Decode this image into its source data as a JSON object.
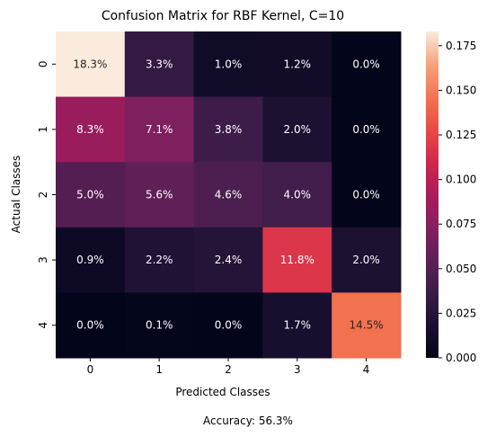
{
  "chart_data": {
    "type": "heatmap",
    "title": "Confusion Matrix for RBF Kernel, C=10",
    "xlabel": "Predicted Classes",
    "ylabel": "Actual Classes",
    "x_categories": [
      "0",
      "1",
      "2",
      "3",
      "4"
    ],
    "y_categories": [
      "0",
      "1",
      "2",
      "3",
      "4"
    ],
    "values": [
      [
        0.183,
        0.033,
        0.01,
        0.012,
        0.0
      ],
      [
        0.083,
        0.071,
        0.038,
        0.02,
        0.0
      ],
      [
        0.05,
        0.056,
        0.046,
        0.04,
        0.0
      ],
      [
        0.009,
        0.022,
        0.024,
        0.118,
        0.02
      ],
      [
        0.0,
        0.001,
        0.0,
        0.017,
        0.145
      ]
    ],
    "cell_labels": [
      [
        "18.3%",
        "3.3%",
        "1.0%",
        "1.2%",
        "0.0%"
      ],
      [
        "8.3%",
        "7.1%",
        "3.8%",
        "2.0%",
        "0.0%"
      ],
      [
        "5.0%",
        "5.6%",
        "4.6%",
        "4.0%",
        "0.0%"
      ],
      [
        "0.9%",
        "2.2%",
        "2.4%",
        "11.8%",
        "2.0%"
      ],
      [
        "0.0%",
        "0.1%",
        "0.0%",
        "1.7%",
        "14.5%"
      ]
    ],
    "colorbar": {
      "range": [
        0.0,
        0.183
      ],
      "ticks": [
        0.0,
        0.025,
        0.05,
        0.075,
        0.1,
        0.125,
        0.15,
        0.175
      ],
      "tick_labels": [
        "0.000",
        "0.025",
        "0.050",
        "0.075",
        "0.100",
        "0.125",
        "0.150",
        "0.175"
      ]
    },
    "colormap": "rocket",
    "footer": "Accuracy: 56.3%"
  }
}
